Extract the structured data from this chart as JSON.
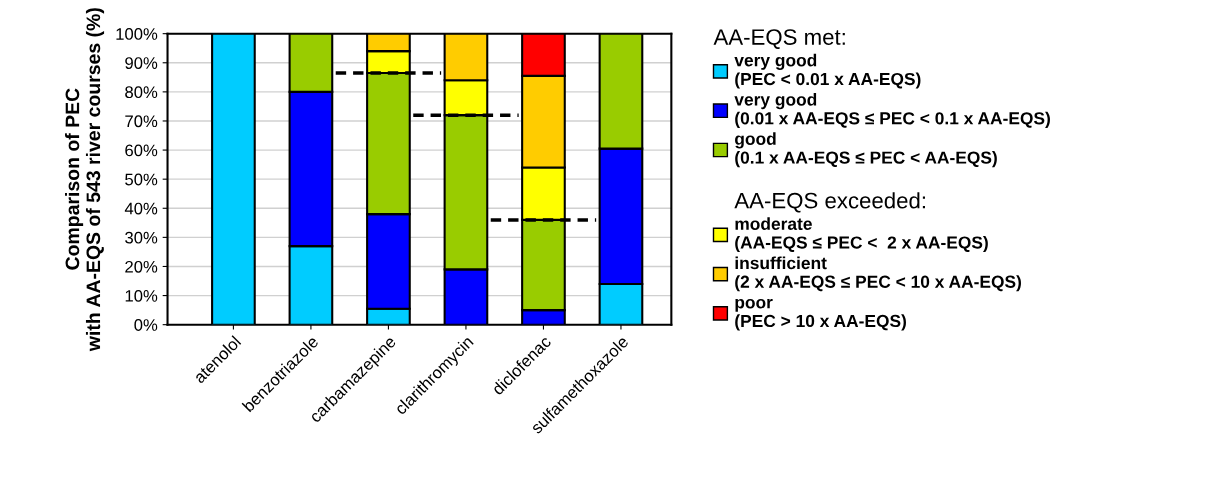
{
  "chart_data": {
    "type": "bar",
    "stacked": true,
    "categories": [
      "atenolol",
      "benzotriazole",
      "carbamazepine",
      "clarithromycin",
      "diclofenac",
      "sulfamethoxazole"
    ],
    "ylabel": "Comparison of PEC\nwith AA-EQS of 543 river courses (%)",
    "ylim": [
      0,
      100
    ],
    "yticks": [
      {
        "value": 0,
        "label": "0%"
      },
      {
        "value": 10,
        "label": "10%"
      },
      {
        "value": 20,
        "label": "20%"
      },
      {
        "value": 30,
        "label": "30%"
      },
      {
        "value": 40,
        "label": "40%"
      },
      {
        "value": 50,
        "label": "50%"
      },
      {
        "value": 60,
        "label": "60%"
      },
      {
        "value": 70,
        "label": "70%"
      },
      {
        "value": 80,
        "label": "80%"
      },
      {
        "value": 90,
        "label": "90%"
      },
      {
        "value": 100,
        "label": "100%"
      }
    ],
    "grid": "y",
    "legend": "right",
    "legend_title": "AA-EQS met:",
    "annotations": [
      "AA-EQS exceeded:"
    ],
    "series": [
      {
        "name": "very good\n(PEC < 0.01 x AA-EQS)",
        "color": "#00ccff",
        "values": [
          100,
          27,
          5.5,
          null,
          null,
          14
        ]
      },
      {
        "name": "very good\n(0.01 x AA-EQS ≤ PEC < 0.1 x AA-EQS)",
        "color": "#0000ff",
        "values": [
          null,
          53,
          32.5,
          19,
          5,
          46.5
        ]
      },
      {
        "name": "good\n(0.1 x AA-EQS ≤ PEC < AA-EQS)",
        "color": "#99cc00",
        "values": [
          null,
          20,
          48.5,
          53,
          31,
          39.5
        ]
      },
      {
        "name": "moderate\n(AA-EQS ≤ PEC <  2 x AA-EQS)",
        "color": "#ffff00",
        "values": [
          null,
          null,
          7.5,
          12,
          18,
          null
        ]
      },
      {
        "name": "insufficient\n(2 x AA-EQS ≤ PEC < 10 x AA-EQS)",
        "color": "#ffcc00",
        "values": [
          null,
          null,
          6,
          16,
          31.5,
          null
        ]
      },
      {
        "name": "poor\n(PEC > 10 x AA-EQS)",
        "color": "#ff0000",
        "values": [
          null,
          null,
          null,
          null,
          14.5,
          null
        ]
      }
    ],
    "ref_lines": [
      {
        "axis": "y",
        "value": 86.5,
        "line_style": "dashed",
        "color": "#000000"
      },
      {
        "axis": "y",
        "value": 72,
        "line_style": "dashed",
        "color": "#000000"
      },
      {
        "axis": "y",
        "value": 36,
        "line_style": "dashed",
        "color": "#000000"
      }
    ]
  }
}
